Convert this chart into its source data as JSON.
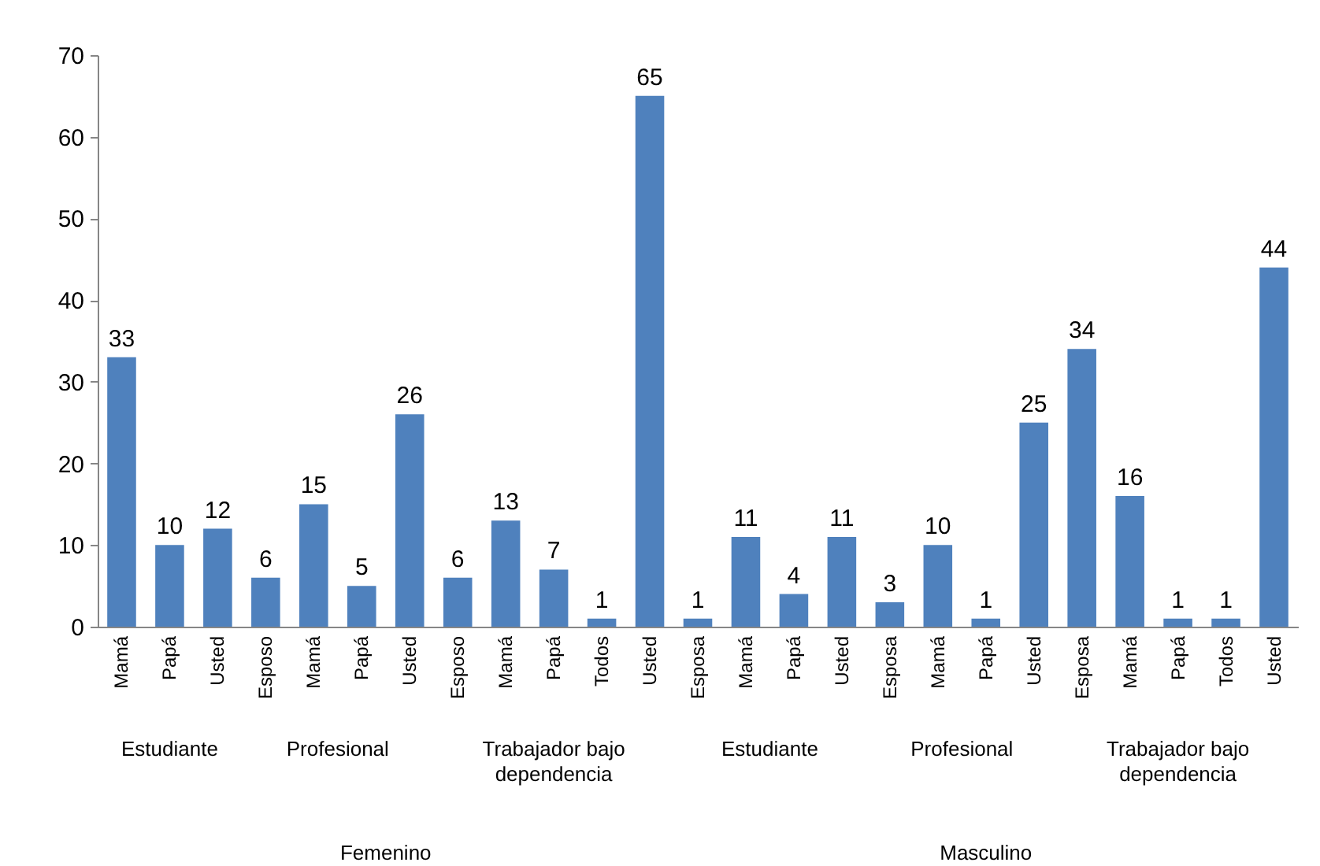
{
  "chart_data": {
    "type": "bar",
    "categories": [
      "Mamá",
      "Papá",
      "Usted",
      "Esposo",
      "Mamá",
      "Papá",
      "Usted",
      "Esposo",
      "Mamá",
      "Papá",
      "Todos",
      "Usted",
      "Esposa",
      "Mamá",
      "Papá",
      "Usted",
      "Esposa",
      "Mamá",
      "Papá",
      "Usted",
      "Esposa",
      "Mamá",
      "Papá",
      "Todos",
      "Usted"
    ],
    "values": [
      33,
      10,
      12,
      6,
      15,
      5,
      26,
      6,
      13,
      7,
      1,
      65,
      1,
      11,
      4,
      11,
      3,
      10,
      1,
      25,
      34,
      16,
      1,
      1,
      44
    ],
    "color": "#4f81bd",
    "ylim": [
      0,
      70
    ],
    "yticks": [
      0,
      10,
      20,
      30,
      40,
      50,
      60,
      70
    ],
    "data_labels": true,
    "annotations": [
      "Estudiante",
      "Profesional",
      "Trabajador bajo dependencia",
      "Estudiante",
      "Profesional",
      "Trabajador bajo dependencia",
      "Femenino",
      "Masculino"
    ]
  }
}
